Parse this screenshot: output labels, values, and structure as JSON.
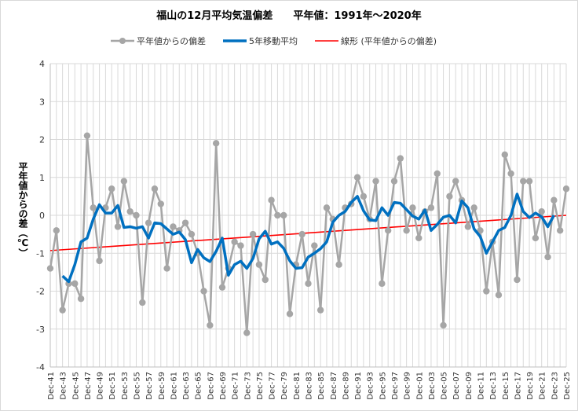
{
  "chart_data": {
    "type": "line",
    "title": "福山の12月平均気温偏差　　平年値：1991年～2020年",
    "ylabel": "平年値からの差（℃）",
    "xlabel": "",
    "ylim": [
      -4,
      4
    ],
    "yticks": [
      -4,
      -3,
      -2,
      -1,
      0,
      1,
      2,
      3,
      4
    ],
    "x": [
      1941,
      1942,
      1943,
      1944,
      1945,
      1946,
      1947,
      1948,
      1949,
      1950,
      1951,
      1952,
      1953,
      1954,
      1955,
      1956,
      1957,
      1958,
      1959,
      1960,
      1961,
      1962,
      1963,
      1964,
      1965,
      1966,
      1967,
      1968,
      1969,
      1970,
      1971,
      1972,
      1973,
      1974,
      1975,
      1976,
      1977,
      1978,
      1979,
      1980,
      1981,
      1982,
      1983,
      1984,
      1985,
      1986,
      1987,
      1988,
      1989,
      1990,
      1991,
      1992,
      1993,
      1994,
      1995,
      1996,
      1997,
      1998,
      1999,
      2000,
      2001,
      2002,
      2003,
      2004,
      2005,
      2006,
      2007,
      2008,
      2009,
      2010,
      2011,
      2012,
      2013,
      2014,
      2015,
      2016,
      2017,
      2018,
      2019,
      2020,
      2021,
      2022,
      2023,
      2024,
      2025
    ],
    "x_tick_labels": [
      "Dec-41",
      "Dec-43",
      "Dec-45",
      "Dec-47",
      "Dec-49",
      "Dec-51",
      "Dec-53",
      "Dec-55",
      "Dec-57",
      "Dec-59",
      "Dec-61",
      "Dec-63",
      "Dec-65",
      "Dec-67",
      "Dec-69",
      "Dec-71",
      "Dec-73",
      "Dec-75",
      "Dec-77",
      "Dec-79",
      "Dec-81",
      "Dec-83",
      "Dec-85",
      "Dec-87",
      "Dec-89",
      "Dec-91",
      "Dec-93",
      "Dec-95",
      "Dec-97",
      "Dec-99",
      "Dec-01",
      "Dec-03",
      "Dec-05",
      "Dec-07",
      "Dec-09",
      "Dec-11",
      "Dec-13",
      "Dec-15",
      "Dec-17",
      "Dec-19",
      "Dec-21",
      "Dec-23",
      "Dec-25"
    ],
    "series": [
      {
        "name": "平年値からの偏差",
        "color": "#a6a6a6",
        "style": "line-with-markers",
        "values": [
          -1.4,
          -0.4,
          -2.5,
          -1.8,
          -1.8,
          -2.2,
          2.1,
          0.2,
          -1.2,
          0.2,
          0.7,
          -0.3,
          0.9,
          0.1,
          0.0,
          -2.3,
          -0.2,
          0.7,
          0.3,
          -1.4,
          -0.3,
          -0.4,
          -0.2,
          -0.5,
          -1.0,
          -2.0,
          -2.9,
          1.9,
          -1.9,
          -1.4,
          -0.7,
          -0.8,
          -3.1,
          -0.5,
          -1.3,
          -1.7,
          0.4,
          0.0,
          0.0,
          -2.6,
          -1.3,
          -0.5,
          -1.8,
          -0.8,
          -2.5,
          0.2,
          -0.1,
          -1.3,
          0.2,
          0.3,
          1.0,
          0.5,
          -0.1,
          0.9,
          -1.8,
          -0.4,
          0.9,
          1.5,
          -0.4,
          0.2,
          -0.6,
          0.1,
          0.2,
          1.1,
          -2.9,
          0.5,
          0.9,
          0.4,
          -0.3,
          0.2,
          -0.4,
          -2.0,
          -0.7,
          -2.1,
          1.6,
          1.1,
          -1.7,
          0.9,
          0.9,
          -0.6,
          0.1,
          -1.1,
          0.4,
          -0.4,
          0.7
        ]
      },
      {
        "name": "5年移動平均",
        "color": "#0070c0",
        "style": "thick-line",
        "values": [
          null,
          null,
          -1.6,
          -1.75,
          -1.3,
          -0.7,
          -0.6,
          -0.1,
          0.28,
          0.06,
          0.06,
          0.26,
          -0.32,
          -0.3,
          -0.34,
          -0.3,
          -0.6,
          -0.2,
          -0.22,
          -0.36,
          -0.5,
          -0.44,
          -0.64,
          -1.25,
          -0.9,
          -1.12,
          -1.22,
          -0.95,
          -0.6,
          -1.58,
          -1.3,
          -1.21,
          -1.4,
          -1.14,
          -0.62,
          -0.42,
          -0.76,
          -0.7,
          -0.87,
          -1.2,
          -1.4,
          -1.38,
          -1.1,
          -1.0,
          -0.88,
          -0.7,
          -0.18,
          0.0,
          0.1,
          0.34,
          0.5,
          0.12,
          -0.12,
          -0.14,
          0.2,
          0.0,
          0.34,
          0.32,
          0.15,
          -0.02,
          -0.1,
          0.14,
          -0.4,
          -0.24,
          -0.05,
          0.0,
          -0.2,
          0.38,
          0.2,
          -0.36,
          -0.56,
          -1.0,
          -0.7,
          -0.4,
          -0.32,
          0.0,
          0.56,
          0.1,
          -0.06,
          0.06,
          -0.04,
          -0.3,
          0.0,
          null,
          null
        ]
      },
      {
        "name": "線形 (平年値からの偏差)",
        "color": "#ff0000",
        "style": "trendline",
        "start": [
          1941,
          -0.93
        ],
        "end": [
          2025,
          0.0
        ]
      }
    ]
  }
}
